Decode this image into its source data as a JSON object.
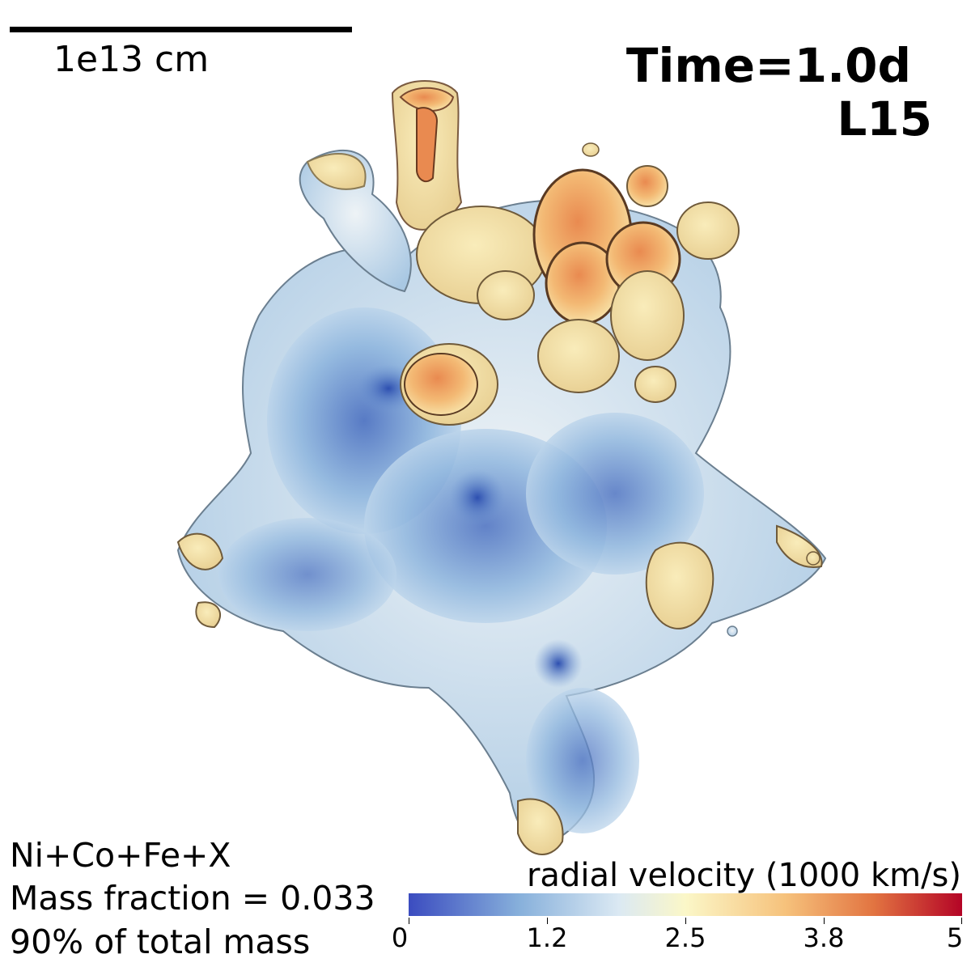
{
  "scale_bar": {
    "label": "1e13 cm"
  },
  "time_label": "Time=1.0d",
  "model_label": "L15",
  "info": {
    "species": "Ni+Co+Fe+X",
    "mass_fraction": "Mass fraction = 0.033",
    "total_mass": "90% of total mass"
  },
  "colorbar": {
    "title": "radial velocity (1000 km/s)",
    "ticks": [
      "0",
      "1.2",
      "2.5",
      "3.8",
      "5"
    ],
    "range": [
      0,
      5
    ],
    "colors": {
      "low": "#3b4cc0",
      "mid": "#fbf7c8",
      "high": "#b40426"
    }
  },
  "image": {
    "subject": "3D isosurface of ejecta colored by radial velocity"
  }
}
